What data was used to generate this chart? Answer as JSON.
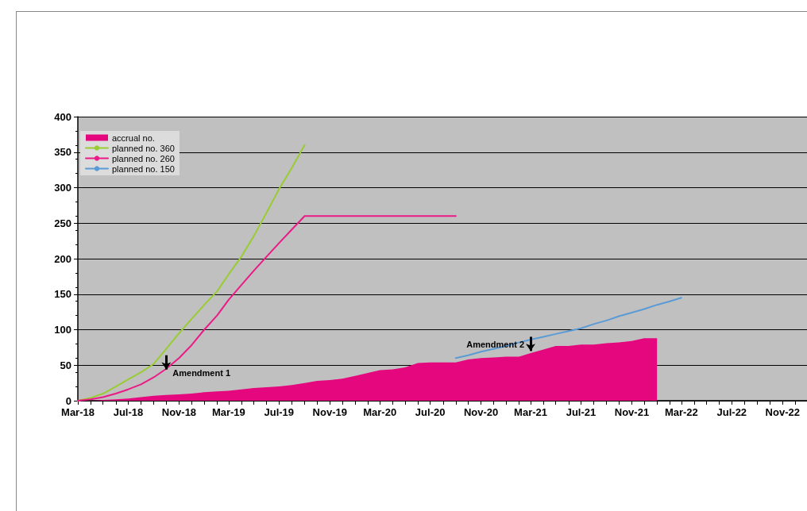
{
  "chart_data": {
    "type": "line",
    "xlim": [
      "2018-03",
      "2023-01"
    ],
    "xticks": [
      {
        "value": "2018-03",
        "label": "Mar-18"
      },
      {
        "value": "2018-04",
        "label": null
      },
      {
        "value": "2018-05",
        "label": null
      },
      {
        "value": "2018-06",
        "label": null
      },
      {
        "value": "2018-07",
        "label": "Jul-18"
      },
      {
        "value": "2018-08",
        "label": null
      },
      {
        "value": "2018-09",
        "label": null
      },
      {
        "value": "2018-10",
        "label": null
      },
      {
        "value": "2018-11",
        "label": "Nov-18"
      },
      {
        "value": "2018-12",
        "label": null
      },
      {
        "value": "2019-01",
        "label": null
      },
      {
        "value": "2019-02",
        "label": null
      },
      {
        "value": "2019-03",
        "label": "Mar-19"
      },
      {
        "value": "2019-04",
        "label": null
      },
      {
        "value": "2019-05",
        "label": null
      },
      {
        "value": "2019-06",
        "label": null
      },
      {
        "value": "2019-07",
        "label": "Jul-19"
      },
      {
        "value": "2019-08",
        "label": null
      },
      {
        "value": "2019-09",
        "label": null
      },
      {
        "value": "2019-10",
        "label": null
      },
      {
        "value": "2019-11",
        "label": "Nov-19"
      },
      {
        "value": "2019-12",
        "label": null
      },
      {
        "value": "2020-01",
        "label": null
      },
      {
        "value": "2020-02",
        "label": null
      },
      {
        "value": "2020-03",
        "label": "Mar-20"
      },
      {
        "value": "2020-04",
        "label": null
      },
      {
        "value": "2020-05",
        "label": null
      },
      {
        "value": "2020-06",
        "label": null
      },
      {
        "value": "2020-07",
        "label": "Jul-20"
      },
      {
        "value": "2020-08",
        "label": null
      },
      {
        "value": "2020-09",
        "label": null
      },
      {
        "value": "2020-10",
        "label": null
      },
      {
        "value": "2020-11",
        "label": "Nov-20"
      },
      {
        "value": "2020-12",
        "label": null
      },
      {
        "value": "2021-01",
        "label": null
      },
      {
        "value": "2021-02",
        "label": null
      },
      {
        "value": "2021-03",
        "label": "Mar-21"
      },
      {
        "value": "2021-04",
        "label": null
      },
      {
        "value": "2021-05",
        "label": null
      },
      {
        "value": "2021-06",
        "label": null
      },
      {
        "value": "2021-07",
        "label": "Jul-21"
      },
      {
        "value": "2021-08",
        "label": null
      },
      {
        "value": "2021-09",
        "label": null
      },
      {
        "value": "2021-10",
        "label": null
      },
      {
        "value": "2021-11",
        "label": "Nov-21"
      },
      {
        "value": "2021-12",
        "label": null
      },
      {
        "value": "2022-01",
        "label": null
      },
      {
        "value": "2022-02",
        "label": null
      },
      {
        "value": "2022-03",
        "label": "Mar-22"
      },
      {
        "value": "2022-04",
        "label": null
      },
      {
        "value": "2022-05",
        "label": null
      },
      {
        "value": "2022-06",
        "label": null
      },
      {
        "value": "2022-07",
        "label": "Jul-22"
      },
      {
        "value": "2022-08",
        "label": null
      },
      {
        "value": "2022-09",
        "label": null
      },
      {
        "value": "2022-10",
        "label": null
      },
      {
        "value": "2022-11",
        "label": "Nov-22"
      },
      {
        "value": "2022-12",
        "label": null
      },
      {
        "value": "2023-01",
        "label": null
      }
    ],
    "ylim": [
      0,
      400
    ],
    "yticks": [
      0,
      50,
      100,
      150,
      200,
      250,
      300,
      350,
      400
    ],
    "grid": "y",
    "legend": "top left",
    "marker": "none",
    "line_style": "solid",
    "series": [
      {
        "name": "accrual no.",
        "type": "area",
        "color": "#e4077e",
        "x": [
          "2018-03",
          "2018-04",
          "2018-05",
          "2018-06",
          "2018-07",
          "2018-08",
          "2018-09",
          "2018-10",
          "2018-11",
          "2018-12",
          "2019-01",
          "2019-02",
          "2019-03",
          "2019-04",
          "2019-05",
          "2019-06",
          "2019-07",
          "2019-08",
          "2019-09",
          "2019-10",
          "2019-11",
          "2019-12",
          "2020-01",
          "2020-02",
          "2020-03",
          "2020-04",
          "2020-05",
          "2020-06",
          "2020-07",
          "2020-08",
          "2020-09",
          "2020-10",
          "2020-11",
          "2020-12",
          "2021-01",
          "2021-02",
          "2021-03",
          "2021-04",
          "2021-05",
          "2021-06",
          "2021-07",
          "2021-08",
          "2021-09",
          "2021-10",
          "2021-11",
          "2021-12",
          "2022-01"
        ],
        "values": [
          0,
          0,
          1,
          2,
          3,
          5,
          7,
          8,
          9,
          10,
          12,
          13,
          14,
          16,
          18,
          19,
          20,
          22,
          25,
          28,
          29,
          31,
          35,
          39,
          43,
          44,
          47,
          53,
          54,
          54,
          54,
          58,
          60,
          61,
          62,
          62,
          67,
          72,
          77,
          77,
          79,
          79,
          81,
          82,
          84,
          88,
          88
        ]
      },
      {
        "name": "planned no. 360",
        "color": "#99cc33",
        "x": [
          "2018-03",
          "2018-04",
          "2018-05",
          "2018-06",
          "2018-07",
          "2018-08",
          "2018-09",
          "2018-10",
          "2018-11",
          "2018-12",
          "2019-01",
          "2019-02",
          "2019-03",
          "2019-04",
          "2019-05",
          "2019-06",
          "2019-07",
          "2019-08",
          "2019-09"
        ],
        "values": [
          0,
          4,
          10,
          20,
          30,
          40,
          52,
          73,
          95,
          115,
          135,
          154,
          178,
          203,
          232,
          265,
          298,
          328,
          360
        ]
      },
      {
        "name": "planned no. 260",
        "color": "#ea1a86",
        "x": [
          "2018-03",
          "2018-04",
          "2018-05",
          "2018-06",
          "2018-07",
          "2018-08",
          "2018-09",
          "2018-10",
          "2018-11",
          "2018-12",
          "2019-01",
          "2019-02",
          "2019-03",
          "2019-04",
          "2019-05",
          "2019-06",
          "2019-07",
          "2019-08",
          "2019-09",
          "2020-09"
        ],
        "values": [
          0,
          2,
          5,
          10,
          16,
          23,
          33,
          45,
          60,
          78,
          100,
          120,
          142,
          163,
          183,
          203,
          222,
          241,
          260,
          260
        ]
      },
      {
        "name": "planned no. 150",
        "color": "#5b9bd5",
        "x": [
          "2020-09",
          "2020-10",
          "2020-11",
          "2020-12",
          "2021-01",
          "2021-02",
          "2021-03",
          "2021-04",
          "2021-05",
          "2021-06",
          "2021-07",
          "2021-08",
          "2021-09",
          "2021-10",
          "2021-11",
          "2021-12",
          "2022-01",
          "2022-02",
          "2022-03"
        ],
        "values": [
          60,
          64,
          69,
          73,
          77,
          82,
          86,
          90,
          94,
          98,
          102,
          108,
          113,
          119,
          124,
          129,
          135,
          140,
          145
        ]
      }
    ],
    "annotations": [
      {
        "text": "Amendment 1",
        "x": "2018-10",
        "y": 44
      },
      {
        "text": "Amendment 2",
        "x": "2021-03",
        "y": 70
      }
    ]
  }
}
